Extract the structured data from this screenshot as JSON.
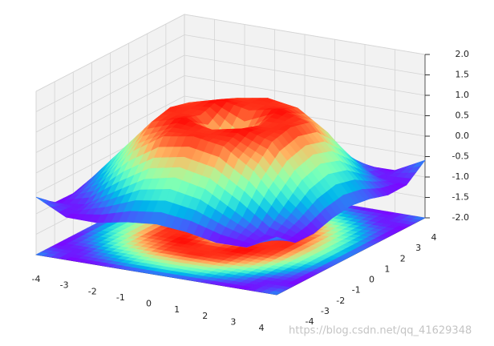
{
  "chart_data": {
    "type": "surface",
    "x": [
      -4,
      -3,
      -2,
      -1,
      0,
      1,
      2,
      3,
      4
    ],
    "y": [
      -4,
      -3,
      -2,
      -1,
      0,
      1,
      2,
      3,
      4
    ],
    "z": [
      [
        -0.59,
        -0.96,
        -0.97,
        -0.83,
        -0.76,
        -0.83,
        -0.97,
        -0.96,
        -0.59
      ],
      [
        -0.96,
        -0.89,
        -0.45,
        -0.02,
        0.14,
        -0.02,
        -0.45,
        -0.89,
        -0.96
      ],
      [
        -0.97,
        -0.45,
        0.31,
        0.79,
        0.91,
        0.79,
        0.31,
        -0.45,
        -0.97
      ],
      [
        -0.83,
        -0.02,
        0.79,
        0.99,
        0.84,
        0.99,
        0.79,
        -0.02,
        -0.83
      ],
      [
        -0.76,
        0.14,
        0.91,
        0.84,
        0,
        0.84,
        0.91,
        0.14,
        -0.76
      ],
      [
        -0.83,
        -0.02,
        0.79,
        0.99,
        0.84,
        0.99,
        0.79,
        -0.02,
        -0.83
      ],
      [
        -0.97,
        -0.45,
        0.31,
        0.79,
        0.91,
        0.79,
        0.31,
        -0.45,
        -0.97
      ],
      [
        -0.96,
        -0.89,
        -0.45,
        -0.02,
        0.14,
        -0.02,
        -0.45,
        -0.89,
        -0.96
      ],
      [
        -0.59,
        -0.96,
        -0.97,
        -0.83,
        -0.76,
        -0.83,
        -0.97,
        -0.96,
        -0.59
      ]
    ],
    "colormap": "rainbow",
    "xlim": [
      -4,
      4
    ],
    "ylim": [
      -4,
      4
    ],
    "zlim": [
      -2,
      2
    ],
    "xticks": [
      -4,
      -3,
      -2,
      -1,
      0,
      1,
      2,
      3,
      4
    ],
    "yticks": [
      -4,
      -3,
      -2,
      -1,
      0,
      1,
      2,
      3,
      4
    ],
    "zticks": [
      {
        "value": -2,
        "label": "-2.0"
      },
      -1.5,
      {
        "value": -1,
        "label": "-1.0"
      },
      -0.5,
      {
        "value": 0,
        "label": "0.0"
      },
      0.5,
      {
        "value": 1,
        "label": "1.0"
      },
      1.5,
      {
        "value": 2,
        "label": "2.0"
      }
    ],
    "watermark": "https://blog.csdn.net/qq_41629348"
  }
}
